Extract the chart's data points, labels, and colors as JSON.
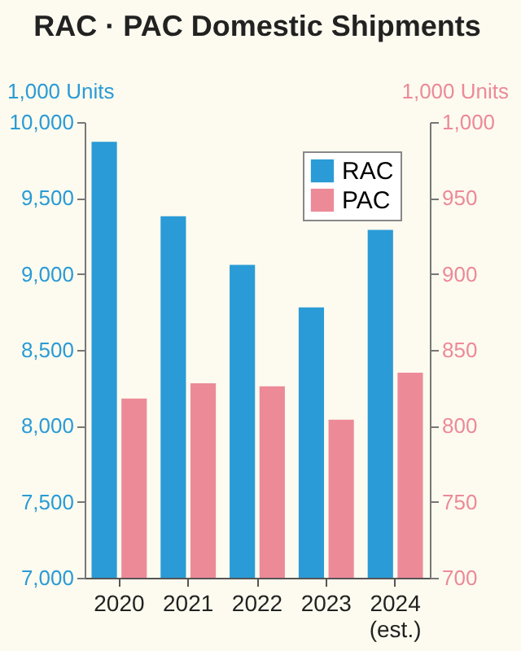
{
  "chart_data": {
    "type": "bar",
    "title": "RAC · PAC Domestic Shipments",
    "ylabel": "1,000 Units",
    "y2label": "1,000 Units",
    "categories": [
      "2020",
      "2021",
      "2022",
      "2023",
      "2024\n(est.)"
    ],
    "series": [
      {
        "name": "RAC",
        "color": "#2a9bd6",
        "values": [
          9870,
          9380,
          9060,
          8780,
          9290
        ]
      },
      {
        "name": "PAC",
        "color": "#ec8a98",
        "axis": "y2",
        "values": [
          818,
          828,
          826,
          804,
          835
        ]
      }
    ],
    "ylim": [
      7000,
      10000
    ],
    "yticks": [
      {
        "value": 7000,
        "label": "7,000"
      },
      {
        "value": 7500,
        "label": "7,500"
      },
      {
        "value": 8000,
        "label": "8,000"
      },
      {
        "value": 8500,
        "label": "8,500"
      },
      {
        "value": 9000,
        "label": "9,000"
      },
      {
        "value": 9500,
        "label": "9,500"
      },
      {
        "value": 10000,
        "label": "10,000"
      }
    ],
    "y2lim": [
      700,
      1000
    ],
    "y2ticks": [
      700,
      750,
      800,
      850,
      900,
      950,
      {
        "value": 1000,
        "label": "1,000"
      }
    ],
    "grid": false,
    "legend": "top right"
  }
}
